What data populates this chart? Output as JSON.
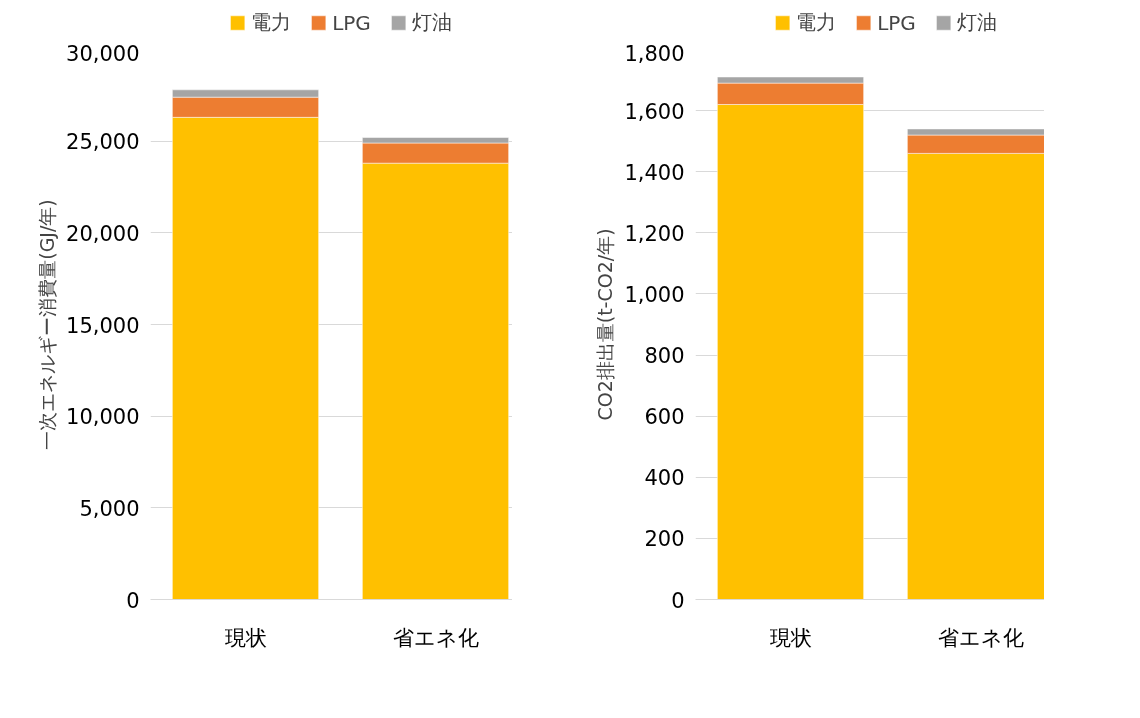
{
  "chart_data": [
    {
      "type": "bar",
      "stacked": true,
      "categories": [
        "現状",
        "省エネ化"
      ],
      "ylabel": "一次エネルギー消費量(GJ/年)",
      "ylim": [
        0,
        30000
      ],
      "yticks": [
        {
          "value": 0,
          "label": "0"
        },
        {
          "value": 5000,
          "label": "5,000"
        },
        {
          "value": 10000,
          "label": "10,000"
        },
        {
          "value": 15000,
          "label": "15,000"
        },
        {
          "value": 20000,
          "label": "20,000"
        },
        {
          "value": 25000,
          "label": "25,000"
        },
        {
          "value": 30000,
          "label": "30,000"
        }
      ],
      "grid": "y",
      "legend": "top",
      "series": [
        {
          "name": "電力",
          "color": "#ffc000",
          "values": [
            26300,
            23800
          ]
        },
        {
          "name": "LPG",
          "color": "#ed7d31",
          "values": [
            1100,
            1100
          ]
        },
        {
          "name": "灯油",
          "color": "#a5a5a5",
          "values": [
            400,
            300
          ]
        }
      ]
    },
    {
      "type": "bar",
      "stacked": true,
      "categories": [
        "現状",
        "省エネ化"
      ],
      "ylabel": "CO2排出量(t-CO2/年)",
      "ylim": [
        0,
        1800
      ],
      "yticks": [
        {
          "value": 0,
          "label": "0"
        },
        {
          "value": 200,
          "label": "200"
        },
        {
          "value": 400,
          "label": "400"
        },
        {
          "value": 600,
          "label": "600"
        },
        {
          "value": 800,
          "label": "800"
        },
        {
          "value": 1000,
          "label": "1,000"
        },
        {
          "value": 1200,
          "label": "1,200"
        },
        {
          "value": 1400,
          "label": "1,400"
        },
        {
          "value": 1600,
          "label": "1,600"
        },
        {
          "value": 1800,
          "label": "1,800"
        }
      ],
      "grid": "y",
      "legend": "top",
      "series": [
        {
          "name": "電力",
          "color": "#ffc000",
          "values": [
            1620,
            1460
          ]
        },
        {
          "name": "LPG",
          "color": "#ed7d31",
          "values": [
            70,
            60
          ]
        },
        {
          "name": "灯油",
          "color": "#a5a5a5",
          "values": [
            20,
            20
          ]
        }
      ]
    }
  ]
}
